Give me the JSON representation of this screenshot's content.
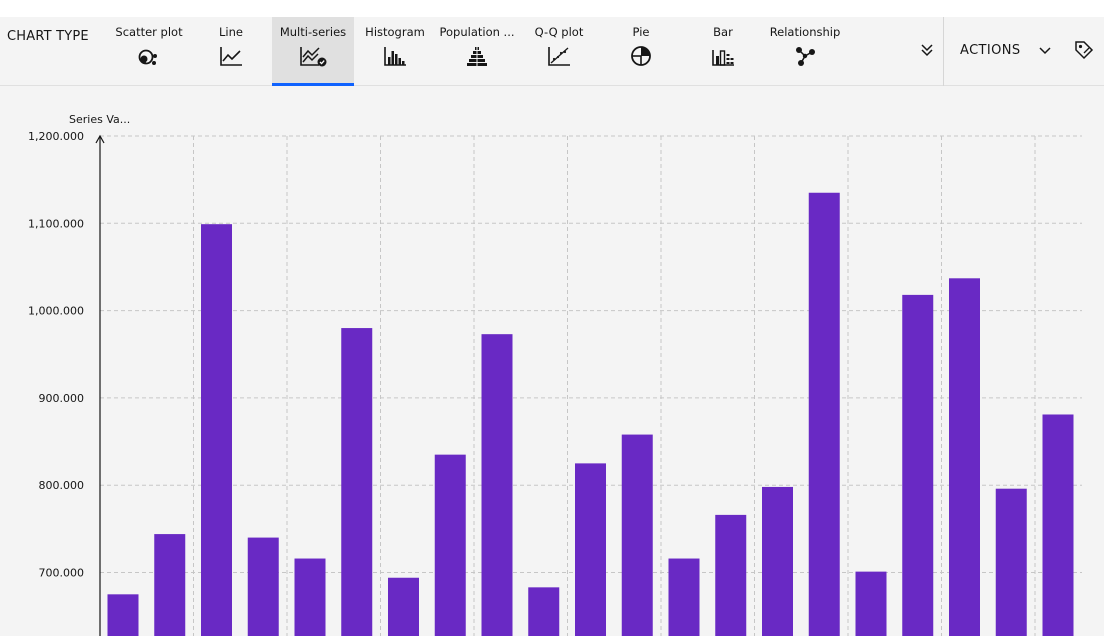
{
  "toolbar": {
    "chart_type_title": "CHART TYPE",
    "tabs": [
      {
        "label": "Scatter plot",
        "icon": "scatter-plot-icon"
      },
      {
        "label": "Line",
        "icon": "line-chart-icon"
      },
      {
        "label": "Multi-series",
        "icon": "multi-series-icon",
        "selected": true
      },
      {
        "label": "Histogram",
        "icon": "histogram-icon"
      },
      {
        "label": "Population ...",
        "icon": "population-pyramid-icon"
      },
      {
        "label": "Q-Q plot",
        "icon": "qq-plot-icon"
      },
      {
        "label": "Pie",
        "icon": "pie-chart-icon"
      },
      {
        "label": "Bar",
        "icon": "bar-chart-icon"
      },
      {
        "label": "Relationship",
        "icon": "relationship-icon"
      }
    ],
    "actions_label": "ACTIONS",
    "accent_color": "#0f62fe"
  },
  "chart_data": {
    "type": "bar",
    "ylabel": "Series Va...",
    "y_ticks": [
      "700.000",
      "800.000",
      "900.000",
      "1,000.000",
      "1,100.000",
      "1,200.000"
    ],
    "ylim": [
      641,
      1200
    ],
    "grid": true,
    "bar_color": "#6929c4",
    "values": [
      675,
      744,
      1099,
      740,
      716,
      980,
      694,
      835,
      973,
      683,
      825,
      858,
      716,
      766,
      798,
      1135,
      701,
      1018,
      1037,
      796,
      881
    ]
  }
}
